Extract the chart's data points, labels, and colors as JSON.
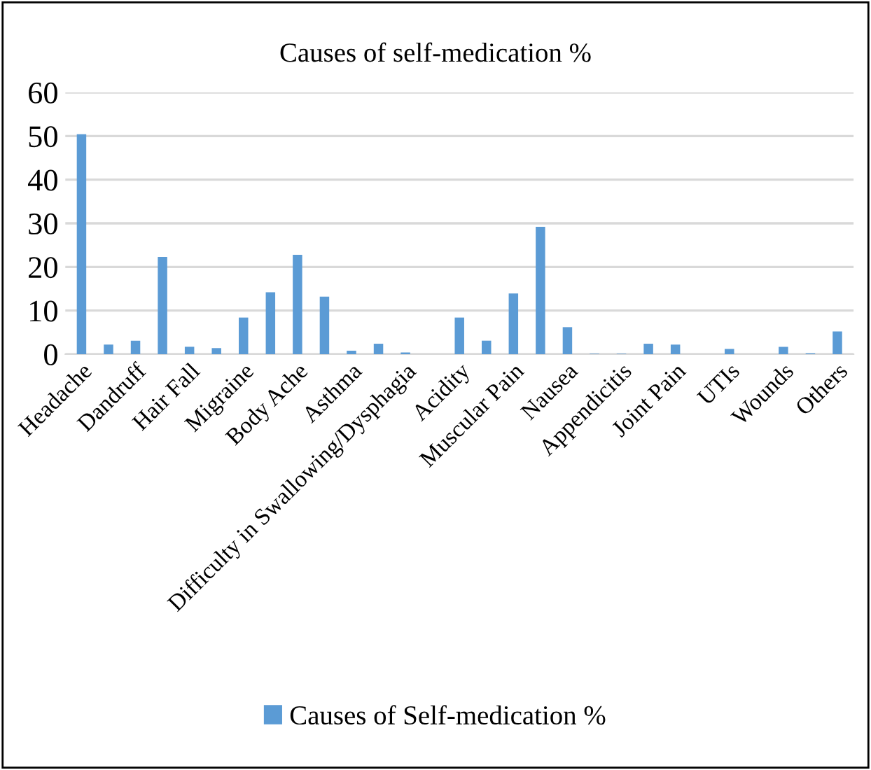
{
  "chart_data": {
    "type": "bar",
    "title": "Causes of self-medication %",
    "categories": [
      "Headache",
      null,
      "Dandruff",
      null,
      "Hair Fall",
      null,
      "Migraine",
      null,
      "Body Ache",
      null,
      "Asthma",
      null,
      "Difficulty in Swallowing/Dysphagia",
      null,
      "Acidity",
      null,
      "Muscular Pain",
      null,
      "Nausea",
      null,
      "Appendicitis",
      null,
      "Joint Pain",
      null,
      "UTIs",
      null,
      "Wounds",
      null,
      "Others"
    ],
    "series": [
      {
        "name": "Causes of Self-medication %",
        "color": "#5b9bd5",
        "values": [
          50.4,
          2.2,
          3.1,
          22.3,
          1.7,
          1.4,
          8.4,
          14.2,
          22.8,
          13.2,
          0.8,
          2.4,
          0.4,
          0,
          8.4,
          3.1,
          13.9,
          29.2,
          6.2,
          0.1,
          0.1,
          2.4,
          2.2,
          0,
          1.2,
          0,
          1.7,
          0.2,
          5.2
        ]
      }
    ],
    "ylim": [
      0,
      60
    ],
    "yticks": [
      0,
      10,
      20,
      30,
      40,
      50,
      60
    ],
    "grid": "y",
    "legend": "bottom"
  }
}
